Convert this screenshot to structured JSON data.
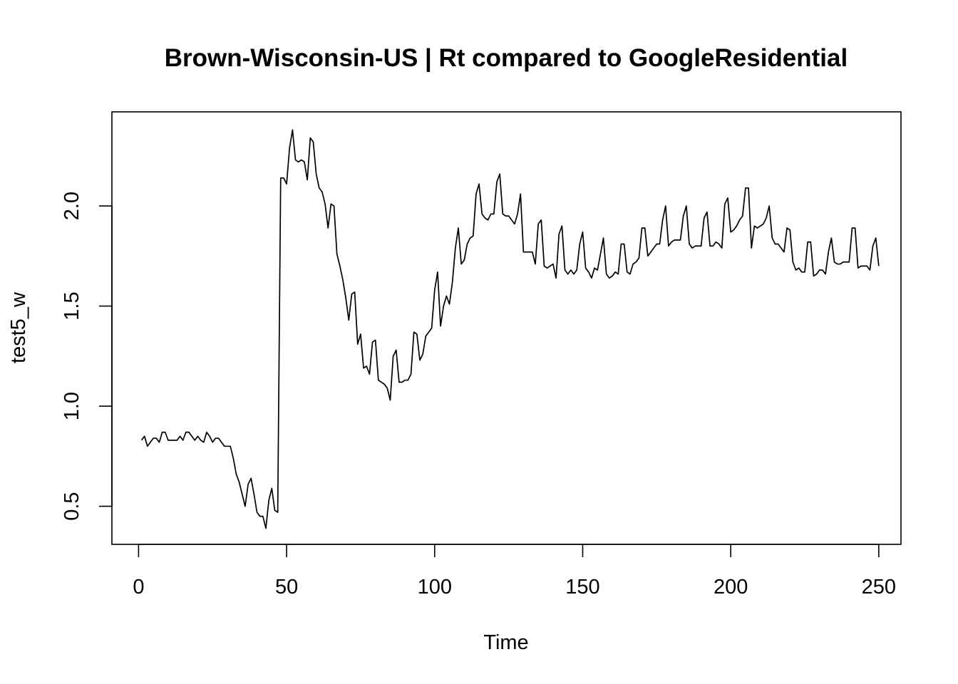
{
  "chart_data": {
    "type": "line",
    "title": "Brown-Wisconsin-US | Rt compared to GoogleResidential",
    "xlabel": "Time",
    "ylabel": "test5_w",
    "xlim": [
      -9,
      257.5
    ],
    "ylim": [
      0.31,
      2.47
    ],
    "x_ticks": [
      0,
      50,
      100,
      150,
      200,
      250
    ],
    "y_ticks": [
      0.5,
      1.0,
      1.5,
      2.0
    ],
    "x_tick_labels": [
      "0",
      "50",
      "100",
      "150",
      "200",
      "250"
    ],
    "y_tick_labels": [
      "0.5",
      "1.0",
      "1.5",
      "2.0"
    ],
    "grid": false,
    "line_color": "#000000",
    "series": [
      {
        "x_start": 1,
        "values": [
          0.83,
          0.85,
          0.8,
          0.82,
          0.84,
          0.84,
          0.82,
          0.87,
          0.87,
          0.83,
          0.83,
          0.83,
          0.83,
          0.85,
          0.83,
          0.87,
          0.87,
          0.85,
          0.83,
          0.85,
          0.83,
          0.82,
          0.87,
          0.85,
          0.82,
          0.84,
          0.84,
          0.82,
          0.8,
          0.8,
          0.8,
          0.74,
          0.66,
          0.62,
          0.56,
          0.5,
          0.61,
          0.64,
          0.56,
          0.47,
          0.45,
          0.45,
          0.39,
          0.53,
          0.59,
          0.48,
          0.47,
          2.14,
          2.14,
          2.11,
          2.29,
          2.38,
          2.23,
          2.22,
          2.23,
          2.22,
          2.13,
          2.34,
          2.32,
          2.16,
          2.09,
          2.07,
          2.01,
          1.89,
          2.01,
          2.0,
          1.76,
          1.7,
          1.63,
          1.54,
          1.43,
          1.56,
          1.57,
          1.31,
          1.36,
          1.19,
          1.2,
          1.16,
          1.32,
          1.33,
          1.13,
          1.12,
          1.11,
          1.09,
          1.03,
          1.25,
          1.28,
          1.12,
          1.12,
          1.13,
          1.13,
          1.16,
          1.37,
          1.36,
          1.23,
          1.26,
          1.35,
          1.37,
          1.39,
          1.58,
          1.67,
          1.4,
          1.5,
          1.55,
          1.51,
          1.62,
          1.79,
          1.89,
          1.71,
          1.73,
          1.81,
          1.84,
          1.85,
          2.06,
          2.11,
          1.96,
          1.94,
          1.93,
          1.96,
          1.96,
          2.12,
          2.16,
          1.96,
          1.95,
          1.95,
          1.93,
          1.91,
          1.96,
          2.06,
          1.77,
          1.77,
          1.77,
          1.77,
          1.71,
          1.91,
          1.93,
          1.7,
          1.69,
          1.7,
          1.71,
          1.64,
          1.86,
          1.9,
          1.68,
          1.66,
          1.68,
          1.66,
          1.68,
          1.81,
          1.87,
          1.69,
          1.67,
          1.64,
          1.69,
          1.68,
          1.76,
          1.84,
          1.66,
          1.64,
          1.65,
          1.67,
          1.66,
          1.81,
          1.81,
          1.67,
          1.66,
          1.71,
          1.72,
          1.74,
          1.89,
          1.89,
          1.75,
          1.77,
          1.79,
          1.81,
          1.81,
          1.93,
          2.0,
          1.8,
          1.82,
          1.83,
          1.83,
          1.83,
          1.95,
          2.0,
          1.81,
          1.79,
          1.8,
          1.8,
          1.8,
          1.94,
          1.97,
          1.8,
          1.8,
          1.82,
          1.81,
          1.79,
          2.01,
          2.04,
          1.87,
          1.88,
          1.9,
          1.93,
          1.95,
          2.09,
          2.09,
          1.79,
          1.9,
          1.89,
          1.9,
          1.91,
          1.94,
          2.0,
          1.84,
          1.81,
          1.81,
          1.79,
          1.77,
          1.89,
          1.88,
          1.72,
          1.68,
          1.69,
          1.67,
          1.67,
          1.82,
          1.82,
          1.65,
          1.66,
          1.68,
          1.68,
          1.66,
          1.77,
          1.84,
          1.72,
          1.71,
          1.71,
          1.72,
          1.72,
          1.72,
          1.89,
          1.89,
          1.69,
          1.7,
          1.7,
          1.7,
          1.68,
          1.8,
          1.84,
          1.7
        ]
      }
    ]
  }
}
